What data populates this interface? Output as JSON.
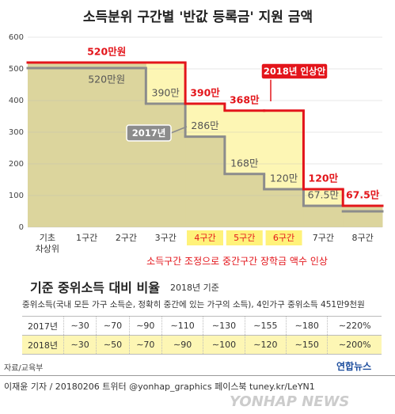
{
  "chart_data": {
    "type": "step",
    "title": "소득분위 구간별 '반값 등록금' 지원 금액",
    "categories": [
      "기초\n차상위",
      "1구간",
      "2구간",
      "3구간",
      "4구간",
      "5구간",
      "6구간",
      "7구간",
      "8구간"
    ],
    "category_highlight": [
      false,
      false,
      false,
      false,
      true,
      true,
      true,
      false,
      false
    ],
    "highlight_color": "#fff27a",
    "series": [
      {
        "name": "2017년",
        "color": "#8c8c8c",
        "fill": "#dcd59d",
        "values": [
          520,
          520,
          520,
          390,
          286,
          168,
          120,
          67.5,
          67.5
        ],
        "value_labels": [
          null,
          "520만원",
          null,
          "390만",
          "286만",
          "168만",
          "120만",
          "67.5만",
          null
        ]
      },
      {
        "name": "2018년 인상안",
        "color": "#e3151b",
        "fill": "#fdf6b4",
        "values": [
          520,
          520,
          520,
          520,
          390,
          368,
          368,
          120,
          67.5
        ],
        "value_labels": [
          null,
          "520만원",
          null,
          null,
          "390만",
          "368만",
          null,
          "120만",
          "67.5만"
        ]
      }
    ],
    "annotation": "소득구간 조정으로 중간구간 장학금 액수 인상",
    "ylim": [
      0,
      600
    ],
    "yticks": [
      0,
      100,
      200,
      300,
      400,
      500,
      600
    ],
    "grid": true
  },
  "table": {
    "title": "기준 중위소득 대비 비율",
    "subtitle": "2018년 기준",
    "note": "중위소득(국내 모든 가구 소득순, 정확히 중간에 있는 가구의 소득), 4인가구 중위소득 451만9천원",
    "rows": [
      [
        "2017년",
        "∼30",
        "∼70",
        "∼90",
        "∼110",
        "∼130",
        "∼155",
        "∼180",
        "∼220%"
      ],
      [
        "2018년",
        "∼30",
        "∼50",
        "∼70",
        "∼90",
        "∼100",
        "∼120",
        "∼150",
        "∼200%"
      ]
    ],
    "highlight_row_color": "#fdf6b4"
  },
  "footer": {
    "source": "자료/교육부",
    "logo": "연합뉴스",
    "credit": "이재윤 기자 / 20180206  트위터 @yonhap_graphics  페이스북 tuney.kr/LeYN1",
    "watermark": "YONHAP NEWS"
  }
}
